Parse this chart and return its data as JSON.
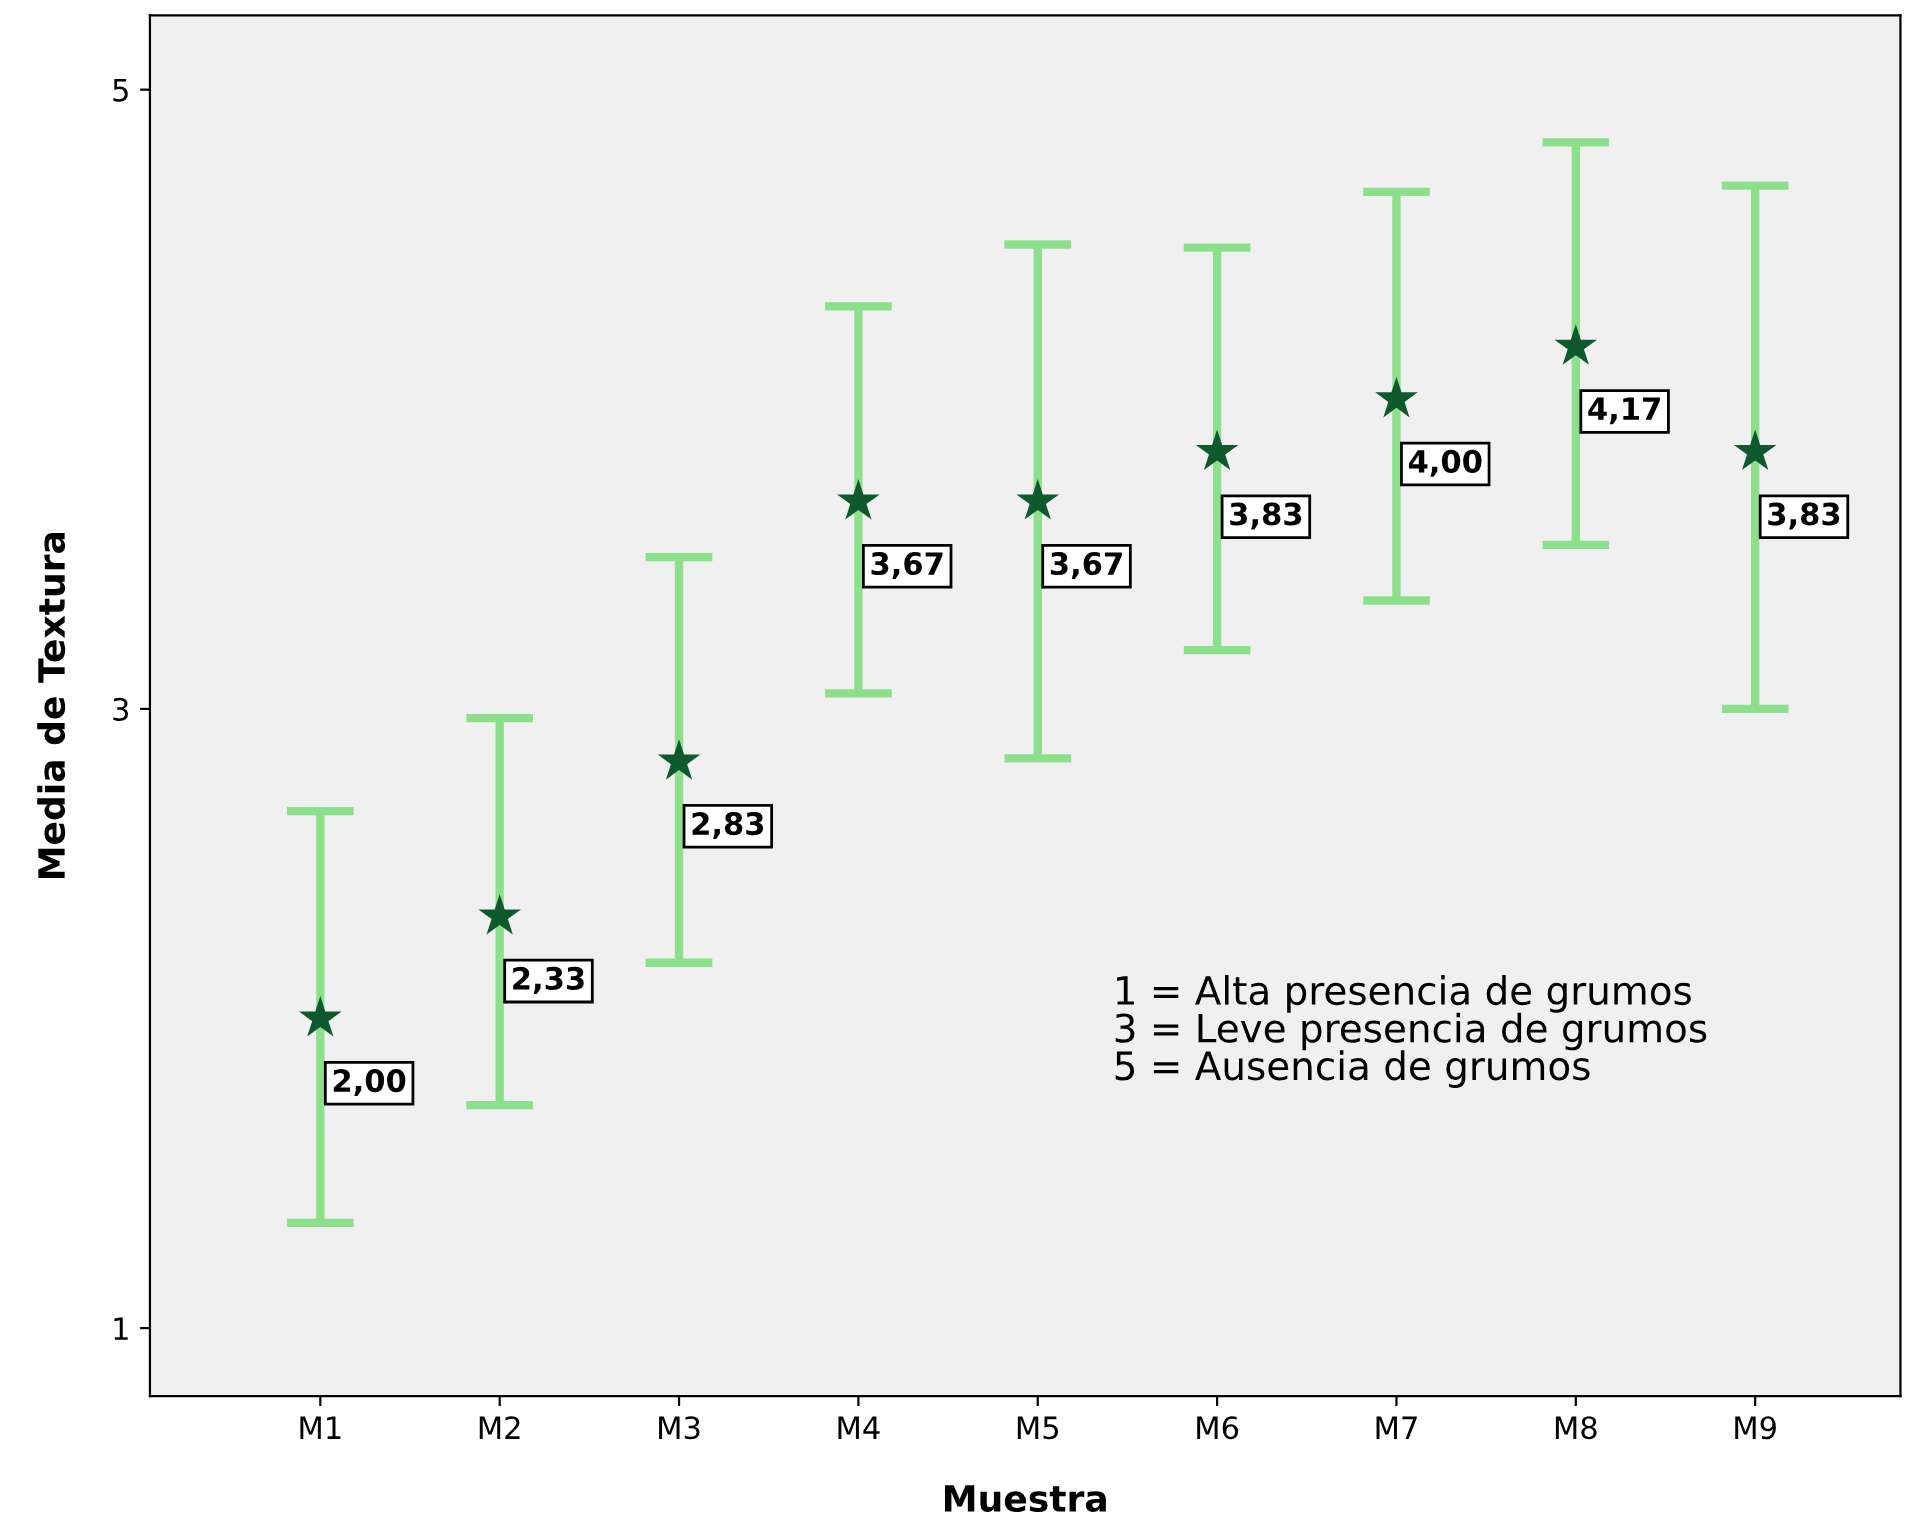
{
  "chart_data": {
    "type": "scatter",
    "xlabel": "Muestra",
    "ylabel": "Media de Textura",
    "categories": [
      "M1",
      "M2",
      "M3",
      "M4",
      "M5",
      "M6",
      "M7",
      "M8",
      "M9"
    ],
    "series": [
      {
        "color": "#0e5a2c",
        "values": [
          2.0,
          2.33,
          2.83,
          3.67,
          3.67,
          3.83,
          4.0,
          4.17,
          3.83
        ],
        "errors": [
          [
            1.34,
            2.67
          ],
          [
            1.72,
            2.97
          ],
          [
            2.18,
            3.49
          ],
          [
            3.05,
            4.3
          ],
          [
            2.84,
            4.5
          ],
          [
            3.19,
            4.49
          ],
          [
            3.35,
            4.67
          ],
          [
            3.53,
            4.83
          ],
          [
            3.0,
            4.69
          ]
        ],
        "value_labels": [
          "2,00",
          "2,33",
          "2,83",
          "3,67",
          "3,67",
          "3,83",
          "4,00",
          "4,17",
          "3,83"
        ]
      }
    ],
    "ylim": [
      0.78,
      5.24
    ],
    "yticks": [
      1,
      3,
      5
    ],
    "marker": "star",
    "grid": false,
    "annotations": [
      "1 = Alta presencia de grumos",
      "3 = Leve presencia de grumos",
      "5 = Ausencia de grumos"
    ]
  }
}
